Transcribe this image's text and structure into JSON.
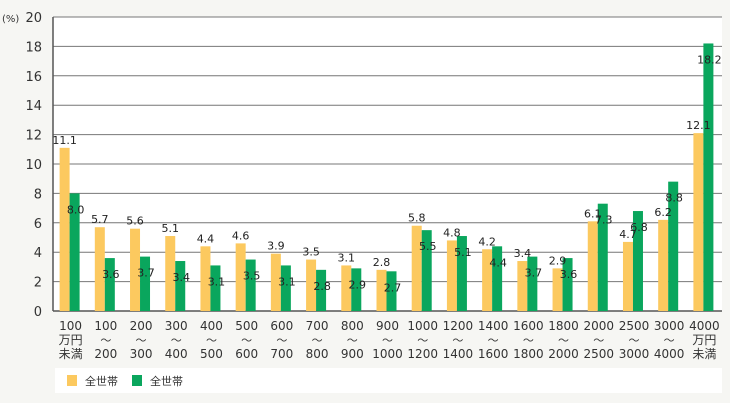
{
  "chart_data": {
    "type": "bar",
    "title": "",
    "ylabel": "(%)",
    "xlabel": "",
    "ylim": [
      0,
      20
    ],
    "yticks": [
      0,
      2,
      4,
      6,
      8,
      10,
      12,
      14,
      16,
      18,
      20
    ],
    "grid": true,
    "legend_position": "bottom",
    "categories": [
      [
        "100",
        "万円",
        "未満"
      ],
      [
        "100",
        "～",
        "200"
      ],
      [
        "200",
        "～",
        "300"
      ],
      [
        "300",
        "～",
        "400"
      ],
      [
        "400",
        "～",
        "500"
      ],
      [
        "500",
        "～",
        "600"
      ],
      [
        "600",
        "～",
        "700"
      ],
      [
        "700",
        "～",
        "800"
      ],
      [
        "800",
        "～",
        "900"
      ],
      [
        "900",
        "～",
        "1000"
      ],
      [
        "1000",
        "～",
        "1200"
      ],
      [
        "1200",
        "～",
        "1400"
      ],
      [
        "1400",
        "～",
        "1600"
      ],
      [
        "1600",
        "～",
        "1800"
      ],
      [
        "1800",
        "～",
        "2000"
      ],
      [
        "2000",
        "～",
        "2500"
      ],
      [
        "2500",
        "～",
        "3000"
      ],
      [
        "3000",
        "～",
        "4000"
      ],
      [
        "4000",
        "万円",
        "未満"
      ]
    ],
    "series": [
      {
        "name": "全世帯",
        "color": "#fcc95f",
        "values": [
          11.1,
          5.7,
          5.6,
          5.1,
          4.4,
          4.6,
          3.9,
          3.5,
          3.1,
          2.8,
          5.8,
          4.8,
          4.2,
          3.4,
          2.9,
          6.1,
          4.7,
          6.2,
          12.1
        ]
      },
      {
        "name": "全世帯",
        "color": "#0aa65d",
        "values": [
          8.0,
          3.6,
          3.7,
          3.4,
          3.1,
          3.5,
          3.1,
          2.8,
          2.9,
          2.7,
          5.5,
          5.1,
          4.4,
          3.7,
          3.6,
          7.3,
          6.8,
          8.8,
          18.2
        ]
      }
    ]
  }
}
